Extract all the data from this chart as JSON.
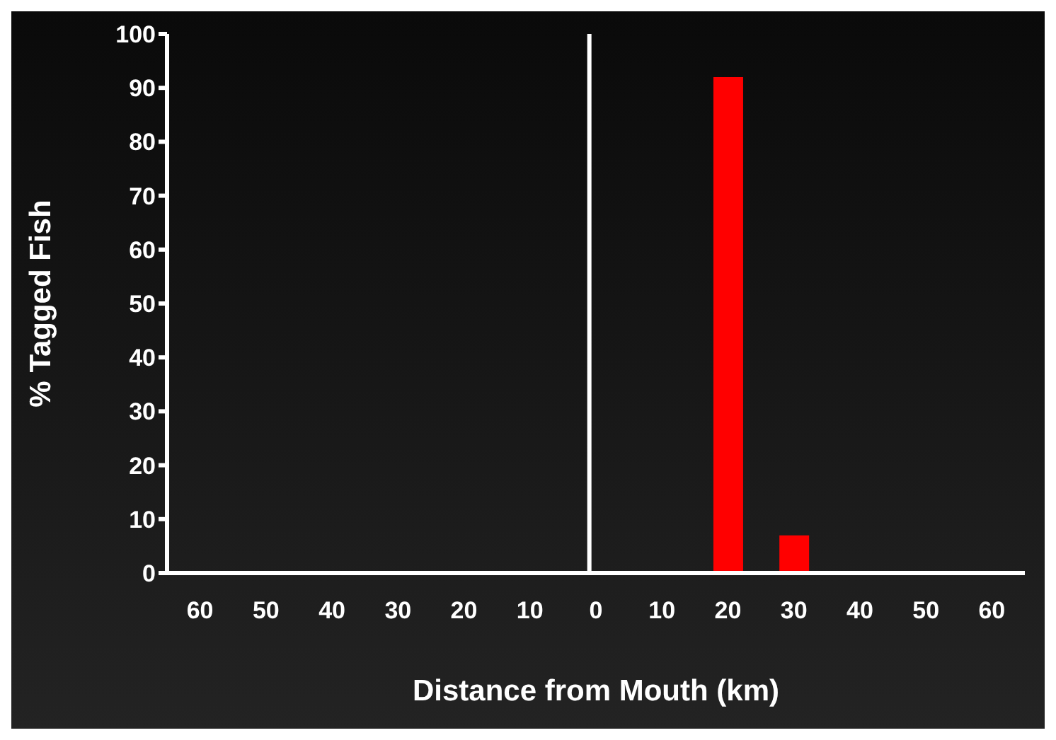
{
  "chart_data": {
    "type": "bar",
    "xlabel": "Distance from Mouth (km)",
    "ylabel": "% Tagged Fish",
    "categories": [
      "60",
      "50",
      "40",
      "30",
      "20",
      "10",
      "0",
      "10",
      "20",
      "30",
      "40",
      "50",
      "60"
    ],
    "values": [
      0,
      0,
      0,
      0,
      0,
      0,
      0,
      0,
      92,
      7,
      0,
      0,
      0
    ],
    "color": "#ff0000",
    "ylim": [
      0,
      100
    ],
    "yticks": [
      0,
      10,
      20,
      30,
      40,
      50,
      60,
      70,
      80,
      90,
      100
    ],
    "grid": false,
    "legend": false,
    "ref_lines": [
      {
        "axis": "x",
        "value": "0",
        "color": "#ffffff"
      }
    ]
  }
}
